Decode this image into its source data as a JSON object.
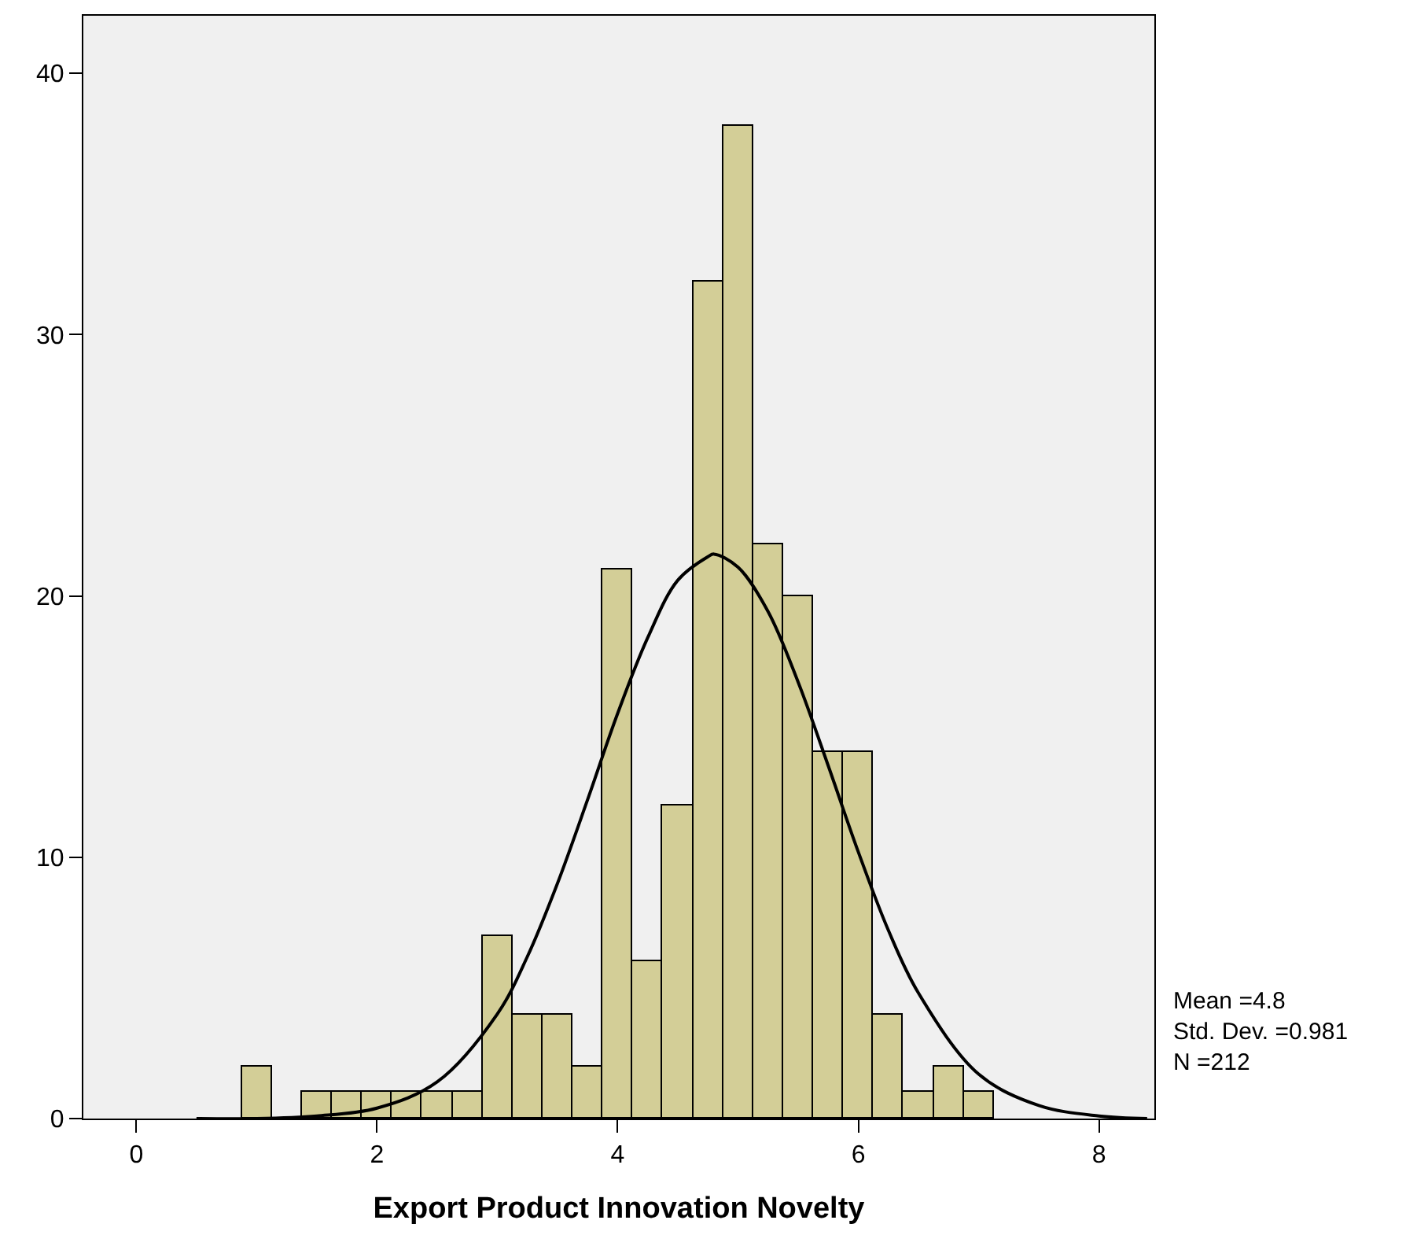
{
  "chart_data": {
    "type": "histogram",
    "xlabel": "Export Product Innovation Novelty",
    "bins": [
      0.875,
      1.125,
      1.375,
      1.625,
      1.875,
      2.125,
      2.375,
      2.625,
      2.875,
      3.125,
      3.375,
      3.625,
      3.875,
      4.125,
      4.375,
      4.625,
      4.875,
      5.125,
      5.375,
      5.625,
      5.875,
      6.125,
      6.375,
      6.625,
      6.875,
      7.125
    ],
    "values": [
      2,
      0,
      1,
      1,
      1,
      1,
      1,
      1,
      7,
      4,
      4,
      2,
      21,
      6,
      12,
      32,
      38,
      22,
      20,
      14,
      14,
      4,
      1,
      2,
      1
    ],
    "color": "#d3ce97",
    "series": [
      {
        "type": "line",
        "color": "#000000",
        "x": [
          0.5,
          1.0,
          1.5,
          2.0,
          2.5,
          3.0,
          3.25,
          3.5,
          3.75,
          4.0,
          4.25,
          4.5,
          4.75,
          4.8,
          5.0,
          5.25,
          5.5,
          5.75,
          6.0,
          6.25,
          6.5,
          7.0,
          7.5,
          8.0,
          8.4
        ],
        "values": [
          0.0,
          0.0,
          0.1,
          0.4,
          1.4,
          4.0,
          6.2,
          9.0,
          12.2,
          15.5,
          18.4,
          20.6,
          21.5,
          21.6,
          21.1,
          19.4,
          16.7,
          13.5,
          10.2,
          7.2,
          4.8,
          1.7,
          0.5,
          0.1,
          0.0
        ]
      }
    ],
    "xlim": [
      -0.44,
      8.46
    ],
    "xticks": [
      0,
      2,
      4,
      6,
      8
    ],
    "ylim": [
      0,
      42.2
    ],
    "yticks": [
      0,
      10,
      20,
      30,
      40
    ],
    "grid": false,
    "annotations": [
      "Mean =4.8",
      "Std. Dev. =0.981",
      "N =212"
    ]
  }
}
